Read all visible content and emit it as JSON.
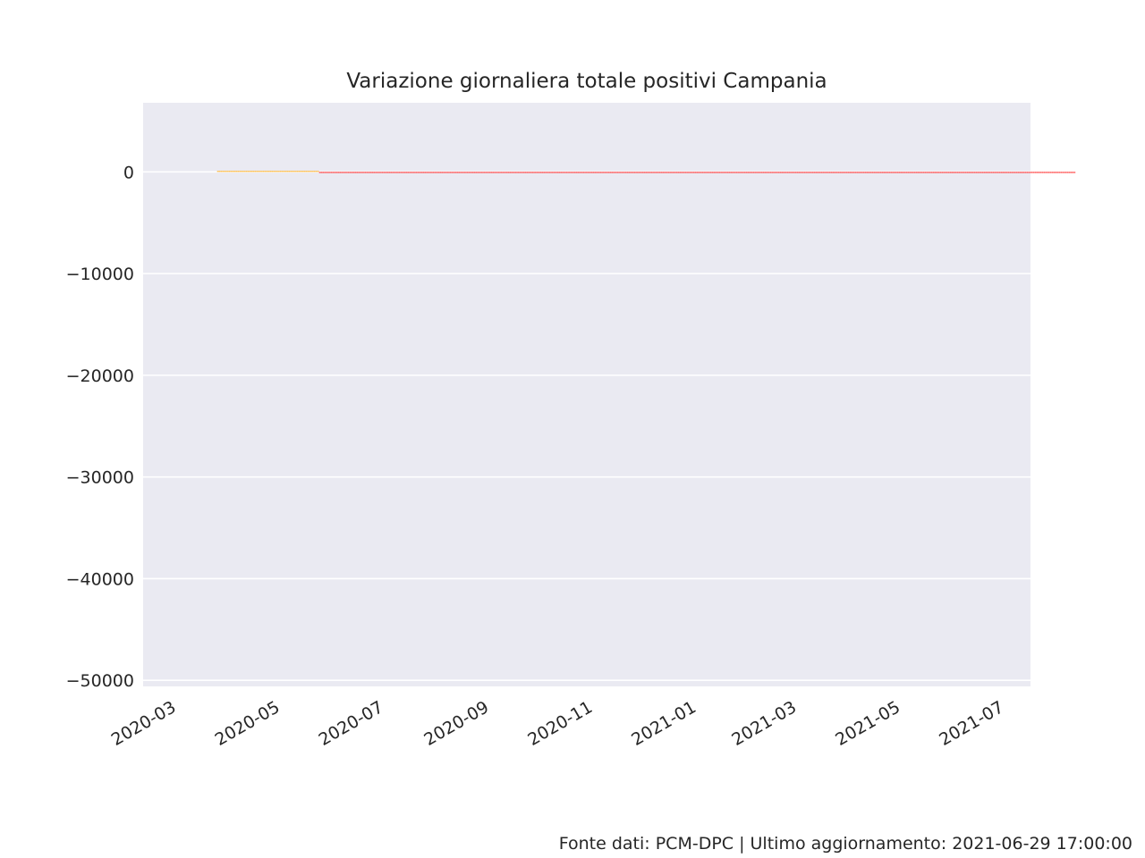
{
  "chart_data": {
    "type": "bar",
    "title": "Variazione giornaliera totale positivi Campania",
    "xlabel": "",
    "ylabel": "",
    "x_range": [
      "2020-02-10",
      "2021-07-16"
    ],
    "ylim": [
      -50600,
      6800
    ],
    "y_ticks": [
      0,
      -10000,
      -20000,
      -30000,
      -40000,
      -50000
    ],
    "y_tick_labels": [
      "0",
      "−10000",
      "−20000",
      "−30000",
      "−40000",
      "−50000"
    ],
    "x_ticks": [
      "2020-03-01",
      "2020-05-01",
      "2020-07-01",
      "2020-09-01",
      "2020-11-01",
      "2021-01-01",
      "2021-03-01",
      "2021-05-01",
      "2021-07-01"
    ],
    "x_tick_labels": [
      "2020-03",
      "2020-05",
      "2020-07",
      "2020-09",
      "2020-11",
      "2021-01",
      "2021-03",
      "2021-05",
      "2021-07"
    ],
    "grid": true,
    "legend": "none",
    "colors": {
      "positive": "#ffa500",
      "negative": "#ff0000",
      "background": "#eaeaf2",
      "grid": "#ffffff"
    },
    "series": [
      {
        "start_date": "2020-03-25",
        "values": [
          100,
          100,
          100,
          100,
          100,
          100,
          100,
          100,
          100,
          100,
          100,
          100,
          100,
          100,
          100,
          100,
          100,
          100,
          100,
          100,
          100,
          100,
          100,
          100,
          100,
          100,
          100,
          100,
          100,
          100,
          100,
          100,
          100,
          100,
          100,
          100,
          100,
          100,
          100,
          100,
          100,
          100,
          100,
          100,
          100,
          100,
          100,
          100,
          100,
          100,
          100,
          100,
          100,
          100,
          100,
          100,
          100,
          100,
          100,
          100,
          -100,
          -100,
          -100,
          -100,
          -100,
          -100,
          -100,
          -100,
          -100,
          -100,
          -100,
          -100,
          -100,
          -100,
          -100,
          -100,
          -100,
          -100,
          -100,
          -100,
          -100,
          -100,
          -100,
          -100,
          -100,
          -100,
          -100,
          -100,
          -100,
          -100,
          -100,
          -100,
          -100,
          -100,
          -100,
          -100,
          -100,
          -100,
          -100,
          -100,
          -100,
          -100,
          -100,
          -100,
          -100,
          -100,
          -100,
          -100,
          -100,
          -100,
          -100,
          -100,
          -100,
          -100,
          -100,
          -100,
          -100,
          -100,
          -100,
          -100,
          -100,
          -100,
          -100,
          -100,
          -100,
          -100,
          -100,
          -100,
          -100,
          -100,
          -100,
          -100,
          -100,
          -100,
          -100,
          -100,
          -100,
          -100,
          -100,
          -100,
          -100,
          -100,
          -100,
          -100,
          -100,
          -100,
          -100,
          -100,
          -100,
          -100,
          -100,
          -100,
          -100,
          -100,
          -100,
          -100,
          -100,
          -100,
          -100,
          -100,
          -100,
          -100,
          -100,
          -100,
          -100,
          -100,
          -100,
          -100,
          -100,
          -100,
          -100,
          -100,
          -100,
          -100,
          -100,
          -100,
          -100,
          -100,
          -100,
          -100,
          -100,
          -100,
          -100,
          -100,
          -100,
          -100,
          -100,
          -100,
          -100,
          -100,
          -100,
          -100,
          -100,
          -100,
          -100,
          -100,
          -100,
          -100,
          -100,
          -100,
          -100,
          -100,
          -100,
          -100,
          -100,
          -100,
          -100,
          -100,
          -100,
          -100,
          -100,
          -100,
          -100,
          -100,
          -100,
          -100,
          -100,
          -100,
          -100,
          -100,
          -100,
          -100,
          -100,
          -100,
          -100,
          -100,
          -100,
          -100,
          -100,
          -100,
          -100,
          -100,
          -100,
          -100,
          -100,
          -100,
          -100,
          -100,
          -100,
          -100,
          -100,
          -100,
          -100,
          -100,
          -100,
          -100,
          -100,
          -100,
          -100,
          -100,
          -100,
          -100,
          -100,
          -100,
          -100,
          -100,
          -100,
          -100,
          -100,
          -100,
          -100,
          -100,
          -100,
          -100,
          -100,
          -100,
          -100,
          -100,
          -100,
          -100,
          -100,
          -100,
          -100,
          -100,
          -100,
          -100,
          -100,
          -100,
          -100,
          -100,
          -100,
          -100,
          -100,
          -100,
          -100,
          -100,
          -100,
          -100,
          -100,
          -100,
          -100,
          -100,
          -100,
          -100,
          -100,
          -100,
          -100,
          -100,
          -100,
          -100,
          -100,
          -100,
          -100,
          -100,
          -100,
          -100,
          -100,
          -100,
          -100,
          -100,
          -100,
          -100,
          -100,
          -100,
          -100,
          -100,
          -100,
          -100,
          -100,
          -100,
          -100,
          -100,
          -100,
          -100,
          -100,
          -100,
          -100,
          -100,
          -100,
          -100,
          -100,
          -100,
          -100,
          -100,
          -100,
          -100,
          -100,
          -100,
          -100,
          -100,
          -100,
          -100,
          -100,
          -100,
          -100,
          -100,
          -100,
          -100,
          -100,
          -100,
          -100,
          -100,
          -100,
          -100,
          -100,
          -100,
          -100,
          -100,
          -100,
          -100,
          -100,
          -100,
          -100,
          -100,
          -100,
          -100,
          -100,
          -100,
          -100,
          -100,
          -100,
          -100,
          -100,
          -100,
          -100,
          -100,
          -100,
          -100,
          -100,
          -100,
          -100,
          -100,
          -100,
          -100,
          -100,
          -100,
          -100,
          -100,
          -100,
          -100,
          -100,
          -100,
          -100,
          -100,
          -100,
          -100,
          -100,
          -100,
          -100,
          -100,
          -100,
          -100,
          -100,
          -100,
          -100,
          -100,
          -100,
          -100,
          -100,
          -100,
          -100,
          -100,
          -100,
          -100,
          -100,
          -100,
          -100,
          -100,
          -100,
          -100,
          -100,
          -100,
          -100,
          -100,
          -100,
          -100,
          -100,
          -100,
          -100,
          -100,
          -100,
          -100,
          -100,
          -100,
          -100,
          -100,
          -100,
          -100,
          -100,
          -100,
          -100,
          -100,
          -100,
          -100,
          -100,
          -100,
          -100,
          -100,
          -100,
          -100,
          -100,
          -100,
          -100,
          -100,
          -100,
          -100,
          -100,
          -100,
          -100,
          -100,
          -100,
          -100,
          -100,
          -100,
          -100,
          -100,
          -100,
          -100,
          -100,
          -100,
          -100,
          -100,
          -100,
          -100,
          -100,
          -100,
          -100,
          -100,
          -100,
          -100,
          -100,
          -100,
          -100,
          -100,
          -100,
          -100,
          -100,
          -100,
          -100,
          -100,
          -100,
          -100,
          -100,
          -100,
          -100,
          -100,
          -100,
          -100,
          -100,
          -100,
          -100,
          -100,
          -100,
          -100,
          -100
        ]
      }
    ]
  },
  "footer": "Fonte dati: PCM-DPC | Ultimo aggiornamento: 2021-06-29 17:00:00"
}
